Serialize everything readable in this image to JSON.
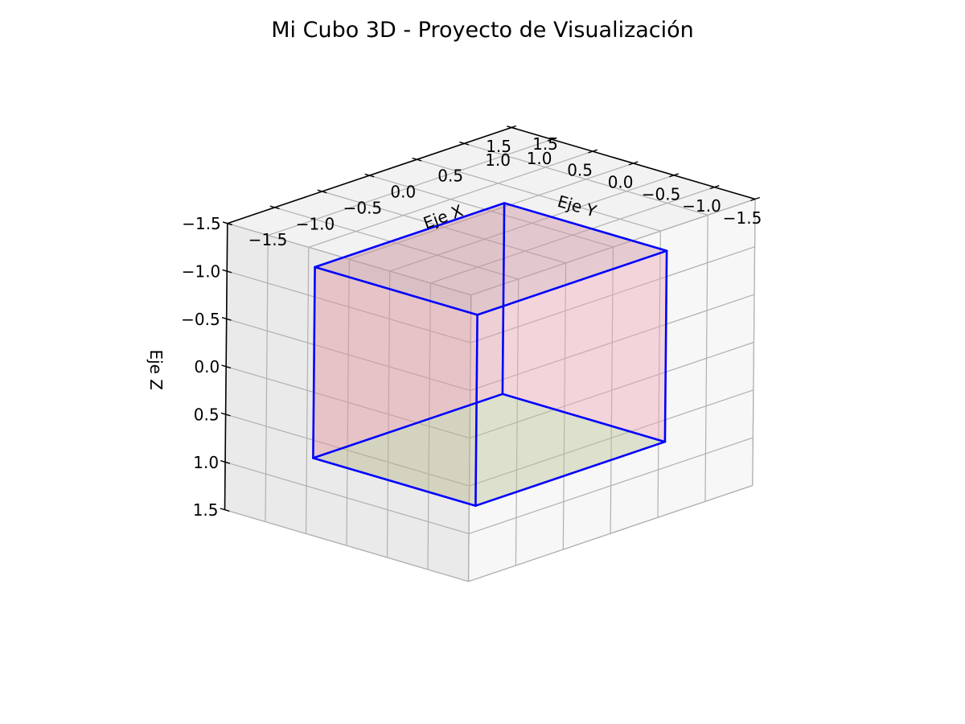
{
  "chart_data": {
    "type": "3d-wireframe",
    "title": "Mi Cubo 3D - Proyecto de Visualización",
    "xlabel": "Eje X",
    "ylabel": "Eje Y",
    "zlabel": "Eje Z",
    "xlim": [
      -1.5,
      1.5
    ],
    "ylim": [
      -1.5,
      1.5
    ],
    "zlim": [
      -1.5,
      1.5
    ],
    "xticks": [
      -1.5,
      -1.0,
      -0.5,
      0.0,
      0.5,
      1.0,
      1.5
    ],
    "yticks": [
      -1.5,
      -1.0,
      -0.5,
      0.0,
      0.5,
      1.0,
      1.5
    ],
    "zticks": [
      -1.5,
      -1.0,
      -0.5,
      0.0,
      0.5,
      1.0,
      1.5
    ],
    "xtick_labels": [
      "−1.5",
      "−1.0",
      "−0.5",
      "0.0",
      "0.5",
      "1.0",
      "1.5"
    ],
    "ytick_labels": [
      "−1.5",
      "−1.0",
      "−0.5",
      "0.0",
      "0.5",
      "1.0",
      "1.5"
    ],
    "ztick_labels": [
      "−1.5",
      "−1.0",
      "−0.5",
      "0.0",
      "0.5",
      "1.0",
      "1.5"
    ],
    "grid": true,
    "view": {
      "elev": 20,
      "azim": 30
    },
    "cube": {
      "vertices": [
        [
          -1,
          -1,
          -1
        ],
        [
          1,
          -1,
          -1
        ],
        [
          1,
          1,
          -1
        ],
        [
          -1,
          1,
          -1
        ],
        [
          -1,
          -1,
          1
        ],
        [
          1,
          -1,
          1
        ],
        [
          1,
          1,
          1
        ],
        [
          -1,
          1,
          1
        ]
      ],
      "edges": [
        [
          0,
          1
        ],
        [
          1,
          2
        ],
        [
          2,
          3
        ],
        [
          3,
          0
        ],
        [
          4,
          5
        ],
        [
          5,
          6
        ],
        [
          6,
          7
        ],
        [
          7,
          4
        ],
        [
          0,
          4
        ],
        [
          1,
          5
        ],
        [
          2,
          6
        ],
        [
          3,
          7
        ]
      ],
      "edge_color": "#0000ff",
      "faces": [
        {
          "name": "bottom",
          "vertices": [
            0,
            1,
            2,
            3
          ],
          "color": "#b07070"
        },
        {
          "name": "back-x",
          "vertices": [
            0,
            3,
            7,
            4
          ],
          "color": "#f08080"
        },
        {
          "name": "back-y",
          "vertices": [
            0,
            1,
            5,
            4
          ],
          "color": "#f3a0a0"
        },
        {
          "name": "front-x",
          "vertices": [
            1,
            2,
            6,
            5
          ],
          "color": "#e8b0c8"
        },
        {
          "name": "front-y",
          "vertices": [
            3,
            2,
            6,
            7
          ],
          "color": "#d8a0b0"
        },
        {
          "name": "top",
          "vertices": [
            4,
            5,
            6,
            7
          ],
          "color": "#90e090"
        }
      ]
    }
  }
}
